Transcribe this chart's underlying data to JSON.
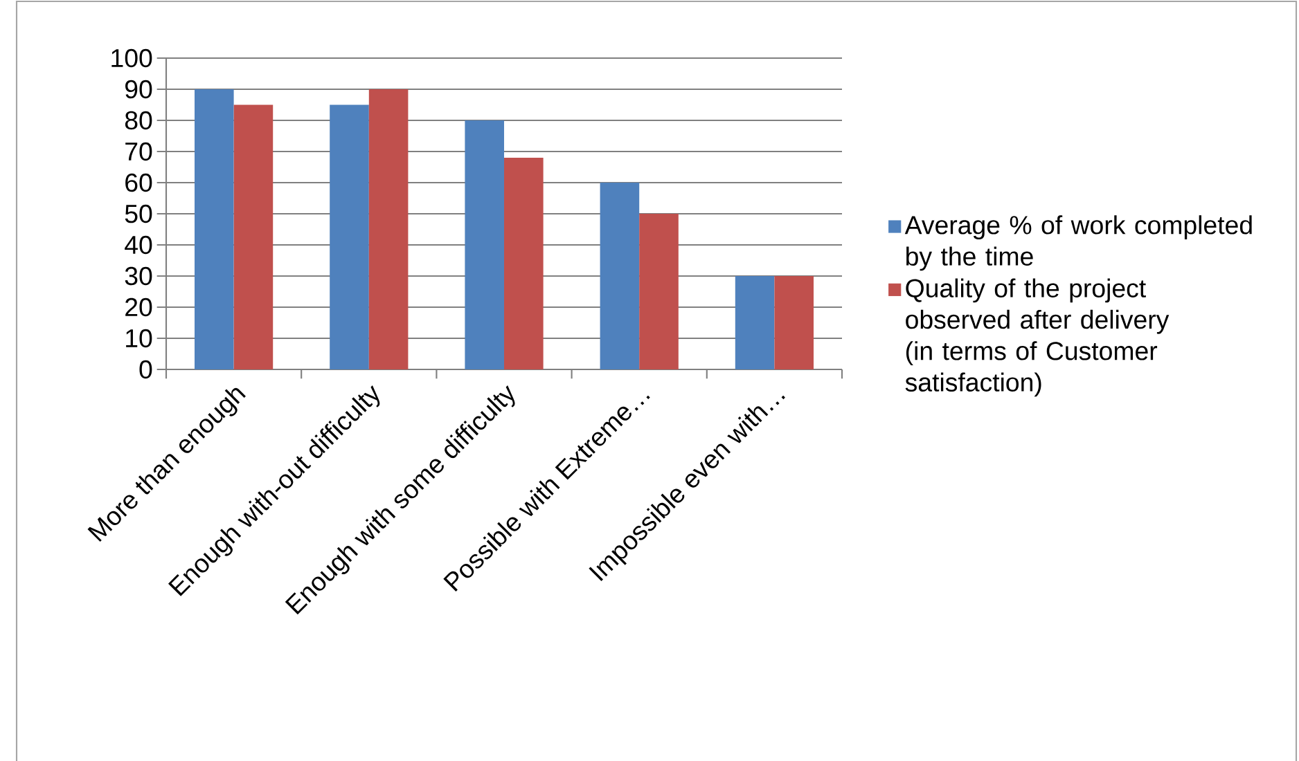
{
  "chart_data": {
    "type": "bar",
    "categories": [
      "More than enough",
      "Enough with-out difficulty",
      "Enough with some difficulty",
      "Possible with Extreme…",
      "Impossible even with…"
    ],
    "series": [
      {
        "name": "Average % of work completed by the time",
        "color": "#4f81bd",
        "values": [
          90,
          85,
          80,
          60,
          30
        ]
      },
      {
        "name": "Quality of the project observed after delivery (in terms of Customer satisfaction)",
        "color": "#c0504d",
        "values": [
          85,
          90,
          68,
          50,
          30
        ]
      }
    ],
    "ylim": [
      0,
      100
    ],
    "yticks": [
      0,
      10,
      20,
      30,
      40,
      50,
      60,
      70,
      80,
      90,
      100
    ],
    "grid": "y",
    "legend": "right"
  }
}
